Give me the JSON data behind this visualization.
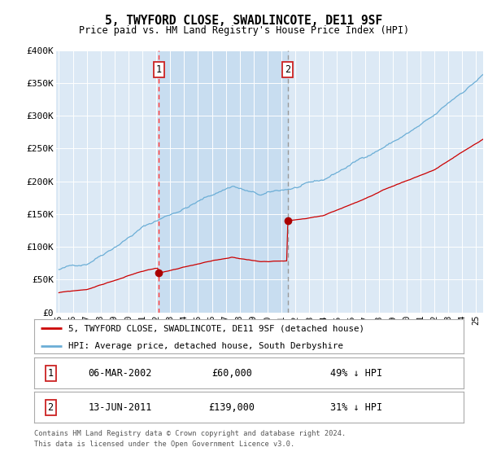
{
  "title": "5, TWYFORD CLOSE, SWADLINCOTE, DE11 9SF",
  "subtitle": "Price paid vs. HM Land Registry's House Price Index (HPI)",
  "legend_label_red": "5, TWYFORD CLOSE, SWADLINCOTE, DE11 9SF (detached house)",
  "legend_label_blue": "HPI: Average price, detached house, South Derbyshire",
  "transaction1_date": "06-MAR-2002",
  "transaction1_price": 60000,
  "transaction1_pct": "49% ↓ HPI",
  "transaction1_year": 2002.17,
  "transaction2_date": "13-JUN-2011",
  "transaction2_price": 139000,
  "transaction2_pct": "31% ↓ HPI",
  "transaction2_year": 2011.45,
  "footer1": "Contains HM Land Registry data © Crown copyright and database right 2024.",
  "footer2": "This data is licensed under the Open Government Licence v3.0.",
  "ylim": [
    0,
    400000
  ],
  "xlim_start": 1994.8,
  "xlim_end": 2025.5,
  "background_color": "#dce9f5",
  "shade_color": "#c8ddf0",
  "vline1_color": "#ff4444",
  "vline2_color": "#888888"
}
